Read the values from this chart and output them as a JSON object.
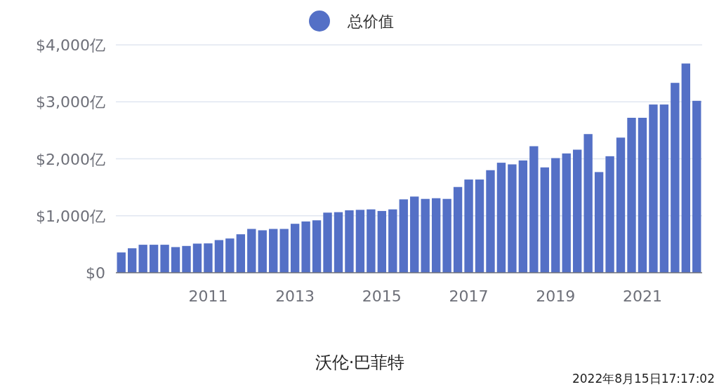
{
  "chart_data": {
    "type": "bar",
    "xlabel": "沃伦·巴菲特",
    "annotations": [
      "2022年8月15日17:17:02"
    ],
    "categories": [
      null,
      null,
      null,
      null,
      null,
      null,
      null,
      null,
      "2011",
      null,
      null,
      null,
      null,
      null,
      null,
      null,
      "2013",
      null,
      null,
      null,
      null,
      null,
      null,
      null,
      "2015",
      null,
      null,
      null,
      null,
      null,
      null,
      null,
      "2017",
      null,
      null,
      null,
      null,
      null,
      null,
      null,
      "2019",
      null,
      null,
      null,
      null,
      null,
      null,
      null,
      "2021",
      null,
      null,
      null,
      null,
      null
    ],
    "series": [
      {
        "name": "总价值",
        "color": "#5470c6",
        "values": [
          356,
          429,
          491,
          491,
          491,
          450,
          470,
          511,
          515,
          573,
          601,
          675,
          769,
          745,
          769,
          769,
          859,
          900,
          920,
          1055,
          1063,
          1096,
          1104,
          1112,
          1084,
          1112,
          1288,
          1337,
          1296,
          1308,
          1296,
          1505,
          1636,
          1636,
          1800,
          1931,
          1902,
          1971,
          2221,
          1849,
          2012,
          2094,
          2160,
          2434,
          1767,
          2045,
          2372,
          2720,
          2720,
          2953,
          2953,
          3333,
          3673,
          3018
        ]
      }
    ],
    "ylim": [
      0,
      4000
    ],
    "yticks": [
      {
        "value": 0,
        "label": "$0"
      },
      {
        "value": 1000,
        "label": "$1,000亿"
      },
      {
        "value": 2000,
        "label": "$2,000亿"
      },
      {
        "value": 3000,
        "label": "$3,000亿"
      },
      {
        "value": 4000,
        "label": "$4,000亿"
      }
    ],
    "grid": "y",
    "legend": "top"
  }
}
